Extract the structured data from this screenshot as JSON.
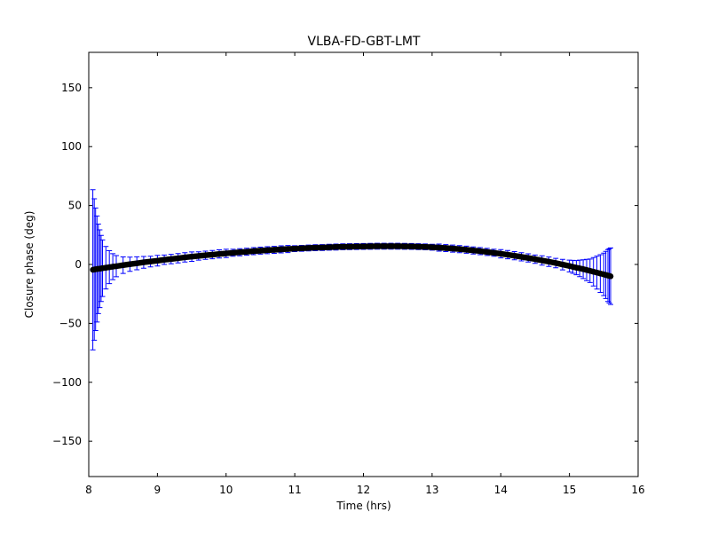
{
  "figure": {
    "background": "#ffffff",
    "frame_color": "#000000"
  },
  "chart_data": {
    "type": "scatter",
    "title": "VLBA-FD-GBT-LMT",
    "xlabel": "Time (hrs)",
    "ylabel": "Closure phase (deg)",
    "xlim": [
      8,
      16
    ],
    "ylim": [
      -180,
      180
    ],
    "xticks": [
      8,
      9,
      10,
      11,
      12,
      13,
      14,
      15,
      16
    ],
    "yticks": [
      -150,
      -100,
      -50,
      0,
      50,
      100,
      150
    ],
    "grid": false,
    "marker_style": "filled-circle",
    "marker_color": "#000000",
    "errorbar_color": "#0000ff",
    "series": [
      {
        "name": "closure-phase",
        "x": [
          8.06,
          8.08,
          8.1,
          8.12,
          8.14,
          8.16,
          8.18,
          8.2,
          8.25,
          8.3,
          8.35,
          8.4,
          8.5,
          8.6,
          8.7,
          8.8,
          8.9,
          9.0,
          9.1,
          9.2,
          9.3,
          9.4,
          9.5,
          9.6,
          9.7,
          9.8,
          9.9,
          10.0,
          10.1,
          10.2,
          10.3,
          10.4,
          10.5,
          10.6,
          10.7,
          10.8,
          10.9,
          11.0,
          11.1,
          11.2,
          11.3,
          11.4,
          11.5,
          11.6,
          11.7,
          11.8,
          11.9,
          12.0,
          12.1,
          12.2,
          12.3,
          12.4,
          12.5,
          12.6,
          12.7,
          12.8,
          12.9,
          13.0,
          13.1,
          13.2,
          13.3,
          13.4,
          13.5,
          13.6,
          13.7,
          13.8,
          13.9,
          14.0,
          14.1,
          14.2,
          14.3,
          14.4,
          14.5,
          14.6,
          14.7,
          14.8,
          14.9,
          15.0,
          15.05,
          15.1,
          15.15,
          15.2,
          15.25,
          15.3,
          15.35,
          15.4,
          15.45,
          15.5,
          15.53,
          15.56,
          15.58,
          15.6
        ],
        "y": [
          -4.5,
          -4.3,
          -4.1,
          -3.9,
          -3.7,
          -3.6,
          -3.4,
          -3.2,
          -2.8,
          -2.3,
          -1.9,
          -1.5,
          -0.6,
          0.2,
          1.0,
          1.8,
          2.5,
          3.2,
          4.0,
          4.6,
          5.3,
          6.0,
          6.6,
          7.2,
          7.8,
          8.3,
          8.9,
          9.4,
          9.9,
          10.4,
          10.8,
          11.3,
          11.7,
          12.1,
          12.4,
          12.8,
          13.1,
          13.4,
          13.7,
          14.0,
          14.2,
          14.4,
          14.6,
          14.8,
          15.0,
          15.1,
          15.2,
          15.3,
          15.4,
          15.5,
          15.5,
          15.5,
          15.5,
          15.4,
          15.3,
          15.1,
          14.9,
          14.6,
          14.3,
          13.9,
          13.5,
          13.0,
          12.5,
          11.9,
          11.3,
          10.6,
          9.9,
          9.1,
          8.3,
          7.4,
          6.5,
          5.5,
          4.5,
          3.4,
          2.3,
          1.2,
          -0.1,
          -1.3,
          -2.0,
          -2.7,
          -3.3,
          -4.0,
          -4.7,
          -5.4,
          -6.2,
          -6.9,
          -7.7,
          -8.4,
          -8.9,
          -9.4,
          -9.7,
          -10.0
        ],
        "yerr": [
          68,
          60,
          52,
          45,
          38,
          33,
          28,
          24,
          18,
          14,
          11,
          9,
          7,
          6,
          5.5,
          5,
          4.5,
          4.5,
          4,
          4,
          4,
          4,
          4,
          3.5,
          3.5,
          3.5,
          3.5,
          3.5,
          3,
          3,
          3,
          3,
          3,
          3,
          3,
          3,
          3,
          2.5,
          2.5,
          2.5,
          2.5,
          2.5,
          2.5,
          2.5,
          2.5,
          2.5,
          2.5,
          2.5,
          2.5,
          2.5,
          2.5,
          2.5,
          2.5,
          2.5,
          2.5,
          2.5,
          2.5,
          2.5,
          3,
          3,
          3,
          3,
          3,
          3,
          3,
          3,
          3,
          3.5,
          3.5,
          3.5,
          3.5,
          3.5,
          3.5,
          4,
          4,
          4,
          4.5,
          5,
          5.5,
          6,
          7,
          8,
          9,
          10,
          12,
          14,
          16,
          18,
          20,
          22,
          23,
          24
        ]
      }
    ]
  }
}
